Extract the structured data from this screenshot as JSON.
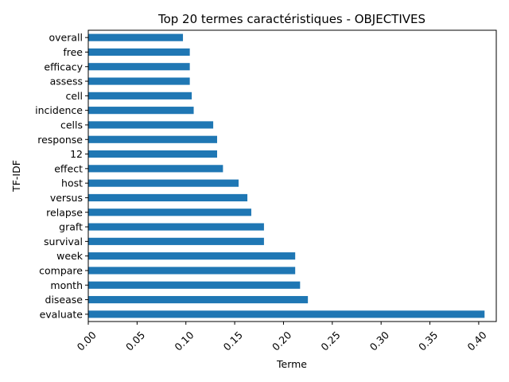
{
  "chart_data": {
    "type": "bar",
    "orientation": "horizontal",
    "title": "Top 20 termes caractéristiques - OBJECTIVES",
    "xlabel": "Terme",
    "ylabel": "TF-IDF",
    "xlim": [
      0.0,
      0.418
    ],
    "x_ticks": [
      "0.00",
      "0.05",
      "0.10",
      "0.15",
      "0.20",
      "0.25",
      "0.30",
      "0.35",
      "0.40"
    ],
    "x_tick_rotation": 45,
    "grid": false,
    "bar_color": "#1f77b4",
    "categories": [
      "evaluate",
      "disease",
      "month",
      "compare",
      "week",
      "survival",
      "graft",
      "relapse",
      "versus",
      "host",
      "effect",
      "12",
      "response",
      "cells",
      "incidence",
      "cell",
      "assess",
      "efficacy",
      "free",
      "overall"
    ],
    "values": [
      0.406,
      0.225,
      0.217,
      0.212,
      0.212,
      0.18,
      0.18,
      0.167,
      0.163,
      0.154,
      0.138,
      0.132,
      0.132,
      0.128,
      0.108,
      0.106,
      0.104,
      0.104,
      0.104,
      0.097
    ]
  }
}
